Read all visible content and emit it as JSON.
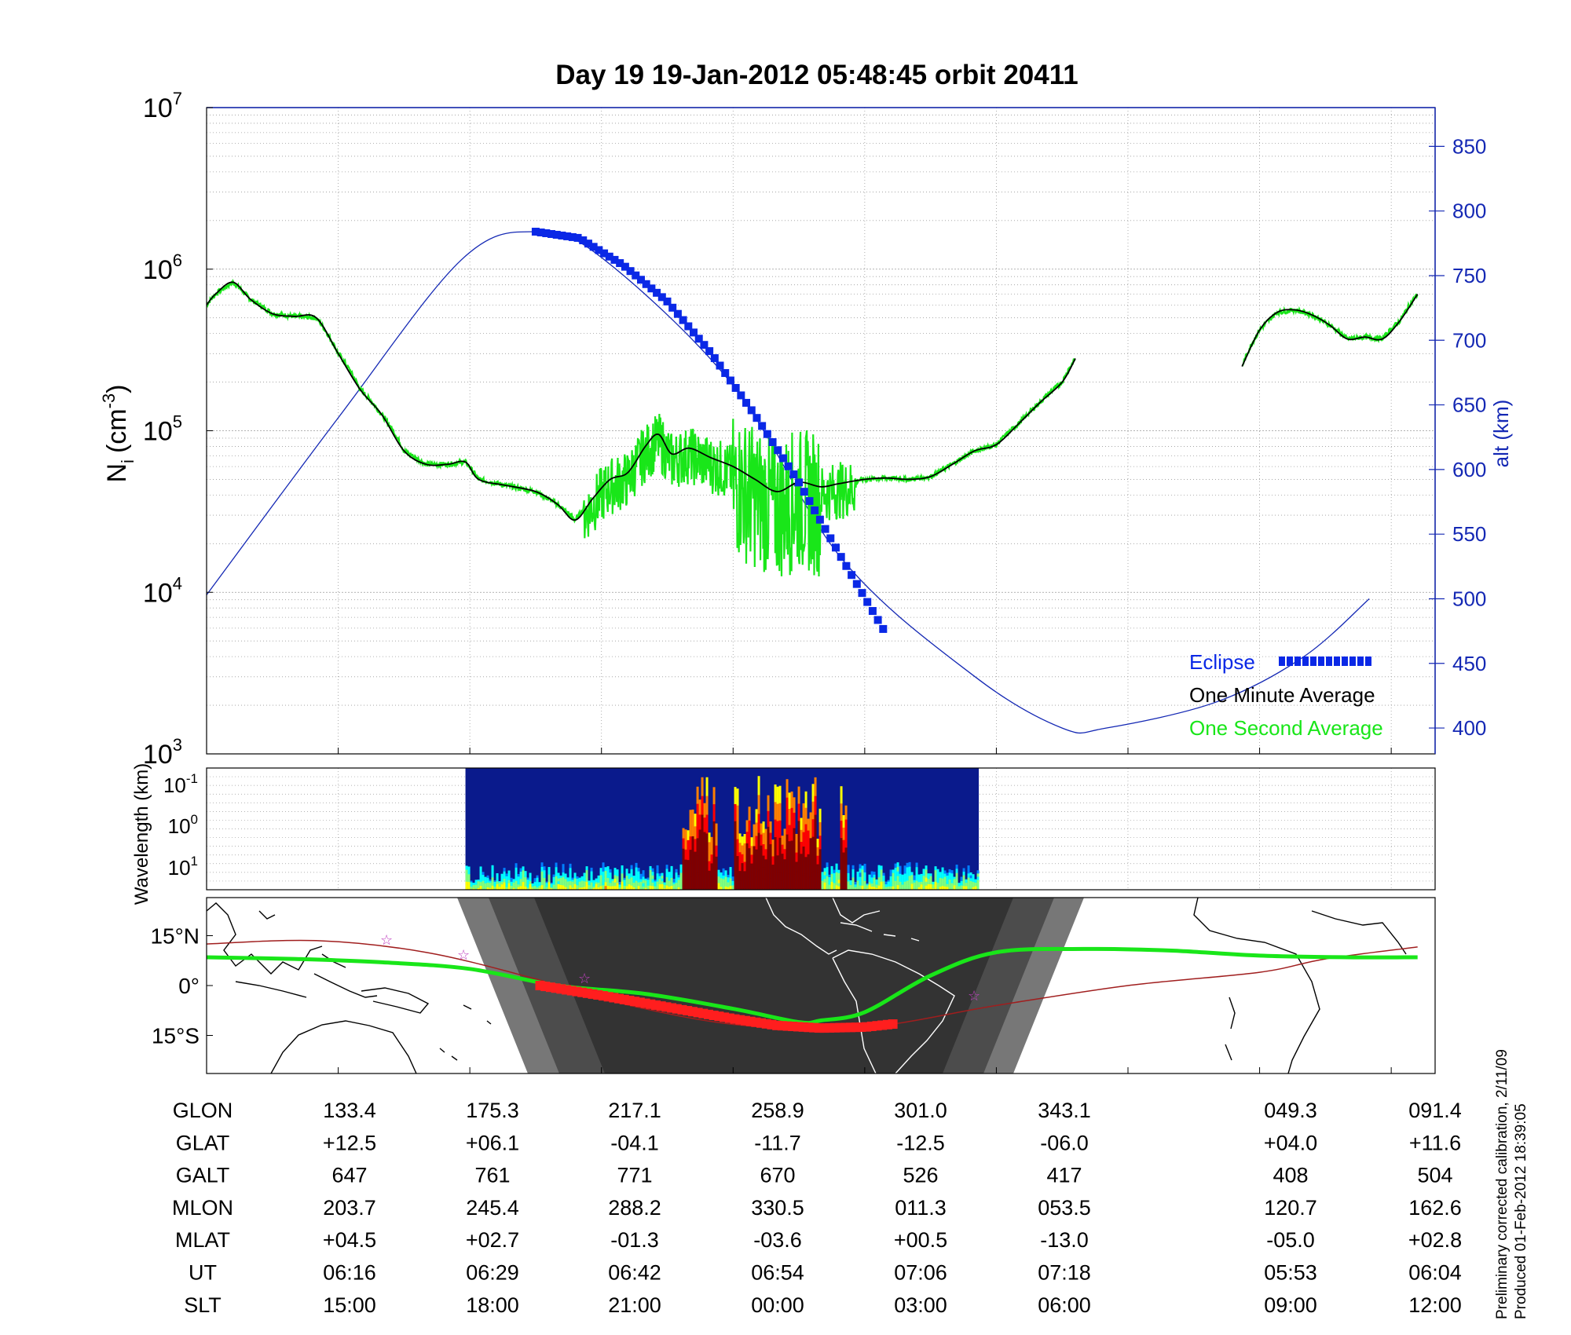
{
  "title": "Day 19  19-Jan-2012 05:48:45   orbit 20411",
  "footnote": {
    "line1": "Preliminary corrected calibration, 2/11/09",
    "line2": "Produced 01-Feb-2012 18:39:05"
  },
  "colors": {
    "eclipse": "#0a28e6",
    "one_minute": "#000000",
    "one_second": "#19e619",
    "altitude": "#1428b4",
    "ground_track": "#a01e1e",
    "eclipse_track": "#ff1e1e",
    "footprint": "#19e619"
  },
  "chart_data": [
    {
      "type": "line",
      "panel": "ion density and altitude",
      "ylabel": "N_i (cm^-3)",
      "ylabel_parts": {
        "base": "N",
        "sub": "i",
        "unit": "(cm",
        "sup": "-3",
        "close": ")"
      },
      "yscale": "log",
      "ylim": [
        1000,
        10000000
      ],
      "yticks_exponents": [
        "3",
        "4",
        "5",
        "6",
        "7"
      ],
      "y2label": "alt (km)",
      "y2lim": [
        380,
        880
      ],
      "y2ticks": [
        "400",
        "450",
        "500",
        "550",
        "600",
        "650",
        "700",
        "750",
        "800",
        "850"
      ],
      "x_slt_hours": [
        15,
        18,
        21,
        24,
        27,
        30,
        33,
        36,
        39
      ],
      "xlim_slt": [
        12,
        40
      ],
      "grid": true,
      "legend_position": "bottom-right",
      "legend": [
        {
          "label": "Eclipse",
          "color_key": "eclipse"
        },
        {
          "label": "One Minute Average",
          "color_key": "one_minute"
        },
        {
          "label": "One Second Average",
          "color_key": "one_second"
        }
      ],
      "series": [
        {
          "name": "One Minute Average",
          "unit": "cm^-3",
          "segments": [
            [
              [
                12.0,
                600000
              ],
              [
                12.2,
                700000
              ],
              [
                12.6,
                830000
              ],
              [
                13.0,
                650000
              ],
              [
                13.5,
                530000
              ],
              [
                14.0,
                510000
              ],
              [
                14.5,
                500000
              ],
              [
                15.0,
                300000
              ],
              [
                15.5,
                180000
              ],
              [
                16.0,
                125000
              ],
              [
                16.5,
                75000
              ],
              [
                17.0,
                62000
              ],
              [
                17.5,
                62000
              ],
              [
                17.9,
                64000
              ],
              [
                18.2,
                50000
              ],
              [
                18.8,
                46000
              ],
              [
                19.5,
                42000
              ],
              [
                20.0,
                35000
              ],
              [
                20.4,
                28000
              ],
              [
                20.8,
                38000
              ],
              [
                21.2,
                50000
              ],
              [
                21.6,
                55000
              ],
              [
                22.0,
                80000
              ],
              [
                22.3,
                95000
              ],
              [
                22.6,
                72000
              ],
              [
                23.0,
                78000
              ],
              [
                23.5,
                68000
              ],
              [
                24.0,
                60000
              ],
              [
                24.5,
                50000
              ],
              [
                25.0,
                42000
              ],
              [
                25.5,
                48000
              ],
              [
                26.0,
                45000
              ],
              [
                26.4,
                47000
              ],
              [
                27.0,
                50000
              ],
              [
                27.5,
                51000
              ],
              [
                28.0,
                50000
              ],
              [
                28.5,
                52000
              ],
              [
                29.0,
                62000
              ],
              [
                29.5,
                75000
              ],
              [
                30.0,
                82000
              ],
              [
                30.5,
                110000
              ],
              [
                31.0,
                150000
              ],
              [
                31.5,
                200000
              ],
              [
                31.8,
                280000
              ]
            ],
            [
              [
                35.6,
                250000
              ],
              [
                36.0,
                420000
              ],
              [
                36.4,
                540000
              ],
              [
                36.8,
                560000
              ],
              [
                37.2,
                520000
              ],
              [
                37.6,
                450000
              ],
              [
                38.0,
                370000
              ],
              [
                38.4,
                380000
              ],
              [
                38.8,
                370000
              ],
              [
                39.2,
                480000
              ],
              [
                39.6,
                700000
              ]
            ]
          ]
        },
        {
          "name": "One Second Average",
          "unit": "cm^-3",
          "note": "follows one-minute average with large spiky fluctuations between SLT ~20.5 and ~26.8",
          "spike_minimum_slt": 25.0,
          "spike_minimum_value": 13000
        },
        {
          "name": "Altitude",
          "unit": "km",
          "axis": "right",
          "points": [
            [
              12.0,
              503
            ],
            [
              15.0,
              640
            ],
            [
              17.8,
              762
            ],
            [
              19.5,
              784
            ],
            [
              21.0,
              764
            ],
            [
              24.0,
              665
            ],
            [
              26.5,
              530
            ],
            [
              29.5,
              440
            ],
            [
              31.5,
              400
            ],
            [
              32.5,
              400
            ],
            [
              35.0,
              420
            ],
            [
              37.0,
              455
            ],
            [
              38.5,
              500
            ]
          ]
        },
        {
          "name": "Eclipse",
          "unit": "km",
          "axis": "right",
          "marker": "square",
          "points": [
            [
              19.5,
              784
            ],
            [
              20.5,
              779
            ],
            [
              21.5,
              758
            ],
            [
              22.5,
              730
            ],
            [
              23.5,
              690
            ],
            [
              24.5,
              642
            ],
            [
              25.5,
              590
            ],
            [
              26.5,
              530
            ],
            [
              27.5,
              472
            ]
          ]
        }
      ]
    },
    {
      "type": "heatmap",
      "panel": "irregularity spectrogram",
      "ylabel": "Wavelength (km)",
      "yscale": "log",
      "ytick_labels": [
        {
          "base": "10",
          "exp": "-1"
        },
        {
          "base": "10",
          "exp": "0"
        },
        {
          "base": "10",
          "exp": "1"
        }
      ],
      "data_coverage_slt": [
        17.9,
        29.6
      ],
      "high_power_bands_slt": [
        [
          22.8,
          23.6
        ],
        [
          24.0,
          26.0
        ],
        [
          26.4,
          26.6
        ]
      ],
      "colormap": "jet"
    },
    {
      "type": "line",
      "panel": "ground track map",
      "ytick_labels": [
        "15°N",
        "0°",
        "15°S"
      ],
      "series": [
        {
          "name": "Footprint",
          "color_key": "footprint",
          "points_lat": [
            [
              12.0,
              8.5
            ],
            [
              14.0,
              8.0
            ],
            [
              16.0,
              7.0
            ],
            [
              18.0,
              5.0
            ],
            [
              20.0,
              0.0
            ],
            [
              22.0,
              -2.5
            ],
            [
              24.0,
              -7.0
            ],
            [
              25.5,
              -11.0
            ],
            [
              26.0,
              -10.5
            ],
            [
              27.0,
              -8.0
            ],
            [
              28.5,
              3.0
            ],
            [
              30.0,
              10.0
            ],
            [
              32.0,
              11.0
            ],
            [
              34.0,
              10.5
            ],
            [
              36.0,
              9.0
            ],
            [
              38.0,
              8.5
            ],
            [
              39.6,
              8.5
            ]
          ]
        },
        {
          "name": "Ground Track",
          "color_key": "ground_track",
          "points_lat": [
            [
              12.0,
              12.5
            ],
            [
              14.5,
              13.5
            ],
            [
              17.0,
              10.0
            ],
            [
              19.5,
              2.0
            ],
            [
              21.0,
              -4.0
            ],
            [
              24.0,
              -11.7
            ],
            [
              27.0,
              -12.5
            ],
            [
              30.0,
              -6.0
            ],
            [
              33.0,
              0.0
            ],
            [
              36.0,
              4.0
            ],
            [
              37.5,
              8.0
            ],
            [
              39.6,
              11.6
            ]
          ]
        },
        {
          "name": "Eclipse Track",
          "color_key": "eclipse_track",
          "points_lat": [
            [
              19.6,
              0.0
            ],
            [
              21.0,
              -3.0
            ],
            [
              22.5,
              -6.5
            ],
            [
              24.0,
              -10.0
            ],
            [
              25.0,
              -12.0
            ],
            [
              26.0,
              -12.8
            ],
            [
              27.0,
              -12.5
            ],
            [
              27.7,
              -11.5
            ]
          ]
        }
      ]
    },
    {
      "type": "table",
      "panel": "orbit ephemeris",
      "rows": [
        {
          "label": "GLON",
          "values": [
            "133.4",
            "175.3",
            "217.1",
            "258.9",
            "301.0",
            "343.1",
            "049.3",
            "091.4"
          ]
        },
        {
          "label": "GLAT",
          "values": [
            "+12.5",
            "+06.1",
            "-04.1",
            "-11.7",
            "-12.5",
            "-06.0",
            "+04.0",
            "+11.6"
          ]
        },
        {
          "label": "GALT",
          "values": [
            "647",
            "761",
            "771",
            "670",
            "526",
            "417",
            "408",
            "504"
          ]
        },
        {
          "label": "MLON",
          "values": [
            "203.7",
            "245.4",
            "288.2",
            "330.5",
            "011.3",
            "053.5",
            "120.7",
            "162.6"
          ]
        },
        {
          "label": "MLAT",
          "values": [
            "+04.5",
            "+02.7",
            "-01.3",
            "-03.6",
            "+00.5",
            "-13.0",
            "-05.0",
            "+02.8"
          ]
        },
        {
          "label": "UT",
          "values": [
            "06:16",
            "06:29",
            "06:42",
            "06:54",
            "07:06",
            "07:18",
            "05:53",
            "06:04"
          ]
        },
        {
          "label": "SLT",
          "values": [
            "15:00",
            "18:00",
            "21:00",
            "00:00",
            "03:00",
            "06:00",
            "09:00",
            "12:00"
          ]
        }
      ]
    }
  ]
}
